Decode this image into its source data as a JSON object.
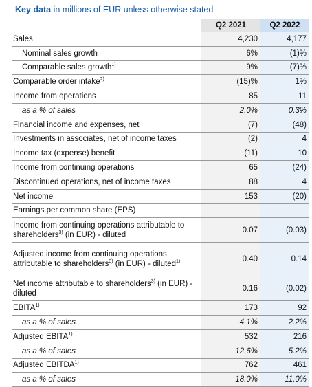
{
  "title": {
    "bold": "Key data",
    "rest": " in millions of EUR unless otherwise stated"
  },
  "columns": [
    "Q2 2021",
    "Q2 2022"
  ],
  "rows": [
    {
      "label": "Sales",
      "sup": "",
      "suffix": "",
      "q2021": "4,230",
      "q2022": "4,177"
    },
    {
      "label": "Nominal sales growth",
      "sup": "",
      "suffix": "",
      "q2021": "6%",
      "q2022": "(1)%"
    },
    {
      "label": "Comparable sales growth",
      "sup": "1)",
      "suffix": "",
      "q2021": "9%",
      "q2022": "(7)%"
    },
    {
      "label": "Comparable order intake",
      "sup": "2)",
      "suffix": "",
      "q2021": "(15)%",
      "q2022": "1%"
    },
    {
      "label": "Income from operations",
      "sup": "",
      "suffix": "",
      "q2021": "85",
      "q2022": "11"
    },
    {
      "label": "as a % of sales",
      "sup": "",
      "suffix": "",
      "q2021": "2.0%",
      "q2022": "0.3%"
    },
    {
      "label": "Financial income and expenses, net",
      "sup": "",
      "suffix": "",
      "q2021": "(7)",
      "q2022": "(48)"
    },
    {
      "label": "Investments in associates, net of income taxes",
      "sup": "",
      "suffix": "",
      "q2021": "(2)",
      "q2022": "4"
    },
    {
      "label": "Income tax (expense) benefit",
      "sup": "",
      "suffix": "",
      "q2021": "(11)",
      "q2022": "10"
    },
    {
      "label": "Income from continuing operations",
      "sup": "",
      "suffix": "",
      "q2021": "65",
      "q2022": "(24)"
    },
    {
      "label": "Discontinued operations, net of income taxes",
      "sup": "",
      "suffix": "",
      "q2021": "88",
      "q2022": "4"
    },
    {
      "label": "Net income",
      "sup": "",
      "suffix": "",
      "q2021": "153",
      "q2022": "(20)"
    },
    {
      "label": "Earnings per common share (EPS)",
      "sup": "",
      "suffix": "",
      "q2021": "",
      "q2022": ""
    },
    {
      "label": "Income from continuing operations attributable to shareholders",
      "sup": "3)",
      "suffix": " (in EUR) - diluted",
      "q2021": "0.07",
      "q2022": "(0.03)"
    },
    {
      "label": "Adjusted income from continuing operations attributable to shareholders",
      "sup": "3)",
      "suffix": " (in EUR) - diluted",
      "sup2": "1)",
      "q2021": "0.40",
      "q2022": "0.14"
    },
    {
      "label": "Net income attributable to shareholders",
      "sup": "3)",
      "suffix": " (in EUR) - diluted",
      "q2021": "0.16",
      "q2022": "(0.02)"
    },
    {
      "label": "EBITA",
      "sup": "1)",
      "suffix": "",
      "q2021": "173",
      "q2022": "92"
    },
    {
      "label": "as a % of sales",
      "sup": "",
      "suffix": "",
      "q2021": "4.1%",
      "q2022": "2.2%"
    },
    {
      "label": "Adjusted EBITA",
      "sup": "1)",
      "suffix": "",
      "q2021": "532",
      "q2022": "216"
    },
    {
      "label": "as a % of sales",
      "sup": "",
      "suffix": "",
      "q2021": "12.6%",
      "q2022": "5.2%"
    },
    {
      "label": "Adjusted EBITDA",
      "sup": "1)",
      "suffix": "",
      "q2021": "762",
      "q2022": "461"
    },
    {
      "label": "as a % of sales",
      "sup": "",
      "suffix": "",
      "q2021": "18.0%",
      "q2022": "11.0%"
    }
  ],
  "colors": {
    "title": "#1a5ea8",
    "q2021_bg": "#f2f2f2",
    "q2022_bg": "#e8f0fa"
  }
}
